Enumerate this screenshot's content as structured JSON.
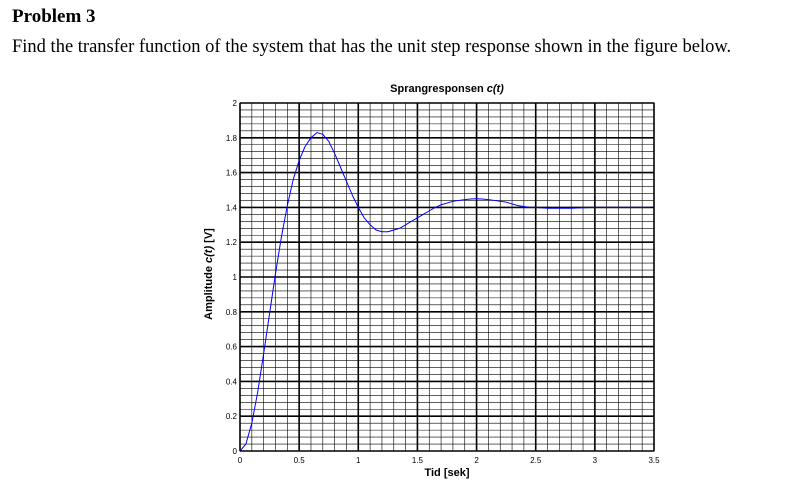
{
  "problem": {
    "heading": "Problem 3",
    "statement": "Find the transfer function of the system that has the unit step response shown in the figure below."
  },
  "colors": {
    "curve": "#0000ff",
    "axes": "#000000",
    "grid": "#000000"
  },
  "chart_data": {
    "type": "line",
    "title": "Sprangresponsen c(t)",
    "title_prefix": "Sprangresponsen ",
    "title_var": "c(t)",
    "xlabel": "Tid [sek]",
    "ylabel": "Amplitude c(t) [V]",
    "ylabel_prefix": "Amplitude ",
    "ylabel_var": "c(t)",
    "ylabel_suffix": " [V]",
    "xlim": [
      0,
      3.5
    ],
    "ylim": [
      0,
      2
    ],
    "xticks": [
      0,
      0.5,
      1,
      1.5,
      2,
      2.5,
      3,
      3.5
    ],
    "xtick_labels": [
      "0",
      "0.5",
      "1",
      "1.5",
      "2",
      "2.5",
      "3",
      "3.5"
    ],
    "yticks": [
      0,
      0.2,
      0.4,
      0.6,
      0.8,
      1,
      1.2,
      1.4,
      1.6,
      1.8,
      2
    ],
    "ytick_labels": [
      "0",
      "0.2",
      "0.4",
      "0.6",
      "0.8",
      "1",
      "1.2",
      "1.4",
      "1.6",
      "1.8",
      "2"
    ],
    "grid": true,
    "minor_grid_divisions": 5,
    "series": [
      {
        "x": [
          0,
          0.05,
          0.1,
          0.15,
          0.2,
          0.25,
          0.3,
          0.35,
          0.4,
          0.45,
          0.5,
          0.55,
          0.6,
          0.65,
          0.7,
          0.75,
          0.8,
          0.85,
          0.9,
          0.95,
          1.0,
          1.05,
          1.1,
          1.15,
          1.2,
          1.25,
          1.3,
          1.35,
          1.4,
          1.45,
          1.5,
          1.55,
          1.6,
          1.65,
          1.7,
          1.75,
          1.8,
          1.85,
          1.9,
          1.95,
          2.0,
          2.05,
          2.1,
          2.15,
          2.2,
          2.25,
          2.3,
          2.35,
          2.4,
          2.45,
          2.5,
          2.6,
          2.7,
          2.8,
          2.9,
          3.0,
          3.1,
          3.2,
          3.3,
          3.4,
          3.5
        ],
        "y": [
          0,
          0.04,
          0.16,
          0.34,
          0.56,
          0.79,
          1.02,
          1.23,
          1.41,
          1.56,
          1.67,
          1.75,
          1.8,
          1.83,
          1.82,
          1.78,
          1.71,
          1.63,
          1.55,
          1.47,
          1.4,
          1.34,
          1.3,
          1.27,
          1.26,
          1.26,
          1.27,
          1.28,
          1.3,
          1.32,
          1.34,
          1.36,
          1.38,
          1.4,
          1.415,
          1.425,
          1.435,
          1.44,
          1.445,
          1.448,
          1.45,
          1.448,
          1.445,
          1.44,
          1.435,
          1.43,
          1.42,
          1.41,
          1.405,
          1.4,
          1.4,
          1.395,
          1.395,
          1.395,
          1.398,
          1.4,
          1.4,
          1.4,
          1.4,
          1.4,
          1.4
        ]
      }
    ]
  }
}
